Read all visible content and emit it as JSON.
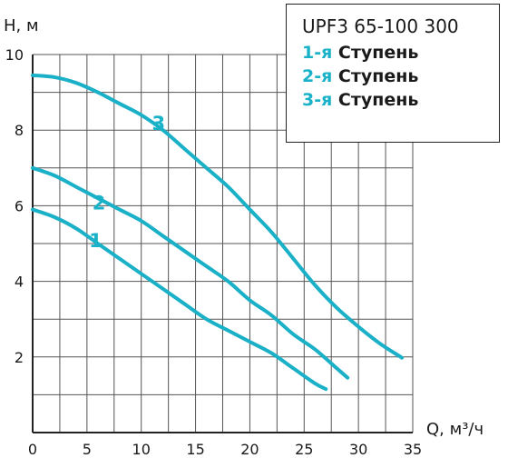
{
  "chart_data": {
    "type": "line",
    "title": "UPF3 65-100 300",
    "xlabel": "Q, м³/ч",
    "ylabel": "Н, м",
    "xlim": [
      0,
      35
    ],
    "ylim": [
      0,
      10
    ],
    "x_ticks": [
      "0",
      "5",
      "10",
      "15",
      "20",
      "25",
      "30",
      "35"
    ],
    "y_ticks": [
      "2",
      "4",
      "6",
      "8",
      "10"
    ],
    "grid": true,
    "legend": {
      "placement": "top-right",
      "title": "UPF3 65-100 300",
      "entries": [
        {
          "num": "1-я",
          "text": " Ступень"
        },
        {
          "num": "2-я",
          "text": " Ступень"
        },
        {
          "num": "3-я",
          "text": " Ступень"
        }
      ]
    },
    "colors": {
      "curve": "#1ab0c7",
      "label": "#19b2c8",
      "grid": "#555555",
      "axis": "#222222"
    },
    "series": [
      {
        "label": "1",
        "label_at": [
          5.8,
          4.9
        ],
        "x": [
          0,
          2,
          4,
          6,
          8,
          10,
          12,
          14,
          16,
          18,
          20,
          22,
          24,
          26,
          27
        ],
        "y": [
          5.9,
          5.7,
          5.4,
          5.0,
          4.6,
          4.2,
          3.8,
          3.4,
          3.0,
          2.7,
          2.4,
          2.1,
          1.7,
          1.3,
          1.15
        ]
      },
      {
        "label": "2",
        "label_at": [
          6.1,
          5.9
        ],
        "x": [
          0,
          2,
          4,
          6,
          8,
          10,
          12,
          14,
          16,
          18,
          20,
          22,
          24,
          26,
          28,
          29
        ],
        "y": [
          7.0,
          6.8,
          6.5,
          6.2,
          5.9,
          5.6,
          5.2,
          4.8,
          4.4,
          4.0,
          3.5,
          3.1,
          2.6,
          2.2,
          1.7,
          1.45
        ]
      },
      {
        "label": "3",
        "label_at": [
          11.6,
          8.0
        ],
        "x": [
          0,
          2,
          4,
          6,
          8,
          10,
          12,
          14,
          16,
          18,
          20,
          22,
          24,
          26,
          28,
          30,
          32,
          34
        ],
        "y": [
          9.45,
          9.4,
          9.25,
          9.0,
          8.7,
          8.4,
          8.0,
          7.5,
          7.0,
          6.5,
          5.9,
          5.3,
          4.6,
          3.9,
          3.3,
          2.8,
          2.35,
          1.98
        ]
      }
    ]
  }
}
